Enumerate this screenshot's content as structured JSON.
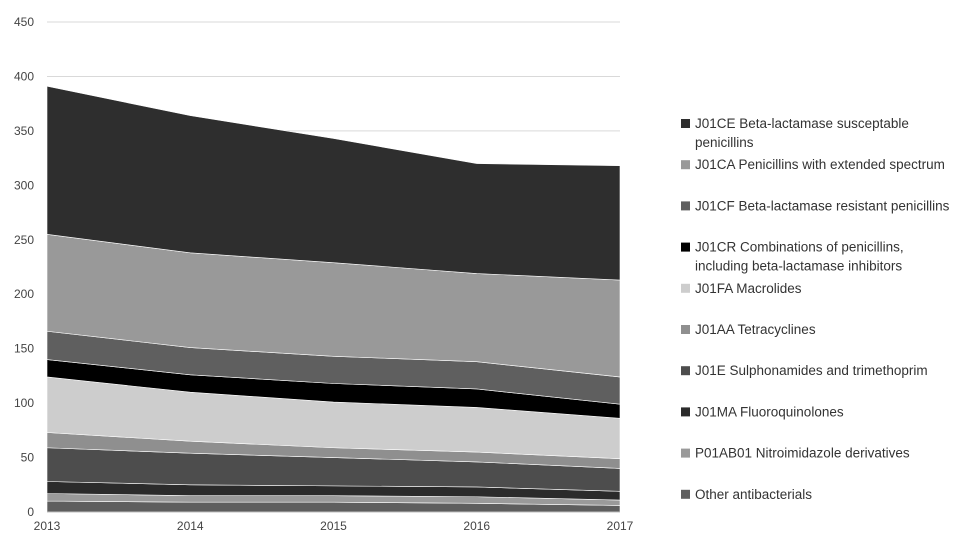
{
  "chart_data": {
    "type": "area",
    "stacked": true,
    "title": "",
    "xlabel": "",
    "ylabel": "",
    "x": [
      "2013",
      "2014",
      "2015",
      "2016",
      "2017"
    ],
    "ylim": [
      0,
      450
    ],
    "yticks": [
      0,
      50,
      100,
      150,
      200,
      250,
      300,
      350,
      400,
      450
    ],
    "grid": "horizontal",
    "legend_position": "right",
    "series": [
      {
        "name": "Other antibacterials",
        "color": "#5e5e5e",
        "values": [
          10,
          9,
          9,
          8,
          6
        ]
      },
      {
        "name": "P01AB01 Nitroimidazole derivatives",
        "color": "#9a9a9a",
        "values": [
          7,
          6,
          6,
          6,
          5
        ]
      },
      {
        "name": "J01MA Fluoroquinolones",
        "color": "#2b2b2b",
        "values": [
          11,
          10,
          9,
          9,
          8
        ]
      },
      {
        "name": "J01E Sulphonamides and trimethoprim",
        "color": "#4d4d4d",
        "values": [
          31,
          29,
          26,
          23,
          21
        ]
      },
      {
        "name": "J01AA Tetracyclines",
        "color": "#8f8f8f",
        "values": [
          14,
          11,
          9,
          9,
          9
        ]
      },
      {
        "name": "J01FA Macrolides",
        "color": "#cdcdcd",
        "values": [
          51,
          45,
          42,
          41,
          37
        ]
      },
      {
        "name": "J01CR Combinations of penicillins, including beta-lactamase inhibitors",
        "color": "#000000",
        "values": [
          16,
          16,
          17,
          17,
          13
        ]
      },
      {
        "name": "J01CF Beta-lactamase resistant penicillins",
        "color": "#5f5f5f",
        "values": [
          26,
          25,
          25,
          25,
          25
        ]
      },
      {
        "name": "J01CA Penicillins with extended spectrum",
        "color": "#999999",
        "values": [
          89,
          87,
          86,
          81,
          89
        ]
      },
      {
        "name": "J01CE Beta-lactamase susceptable penicillins",
        "color": "#2e2e2e",
        "values": [
          136,
          126,
          114,
          101,
          105
        ]
      }
    ],
    "legend": [
      {
        "label_lines": [
          "J01CE Beta-lactamase susceptable",
          "penicillins"
        ],
        "color": "#2e2e2e"
      },
      {
        "label_lines": [
          "J01CA Penicillins with extended spectrum"
        ],
        "color": "#999999"
      },
      {
        "label_lines": [
          "J01CF Beta-lactamase resistant penicillins"
        ],
        "color": "#5f5f5f"
      },
      {
        "label_lines": [
          "J01CR Combinations of penicillins,",
          "including beta-lactamase inhibitors"
        ],
        "color": "#000000"
      },
      {
        "label_lines": [
          "J01FA Macrolides"
        ],
        "color": "#cdcdcd"
      },
      {
        "label_lines": [
          "J01AA Tetracyclines"
        ],
        "color": "#8f8f8f"
      },
      {
        "label_lines": [
          "J01E Sulphonamides and trimethoprim"
        ],
        "color": "#4d4d4d"
      },
      {
        "label_lines": [
          "J01MA Fluoroquinolones"
        ],
        "color": "#2b2b2b"
      },
      {
        "label_lines": [
          "P01AB01 Nitroimidazole derivatives"
        ],
        "color": "#9a9a9a"
      },
      {
        "label_lines": [
          "Other antibacterials"
        ],
        "color": "#5e5e5e"
      }
    ]
  }
}
